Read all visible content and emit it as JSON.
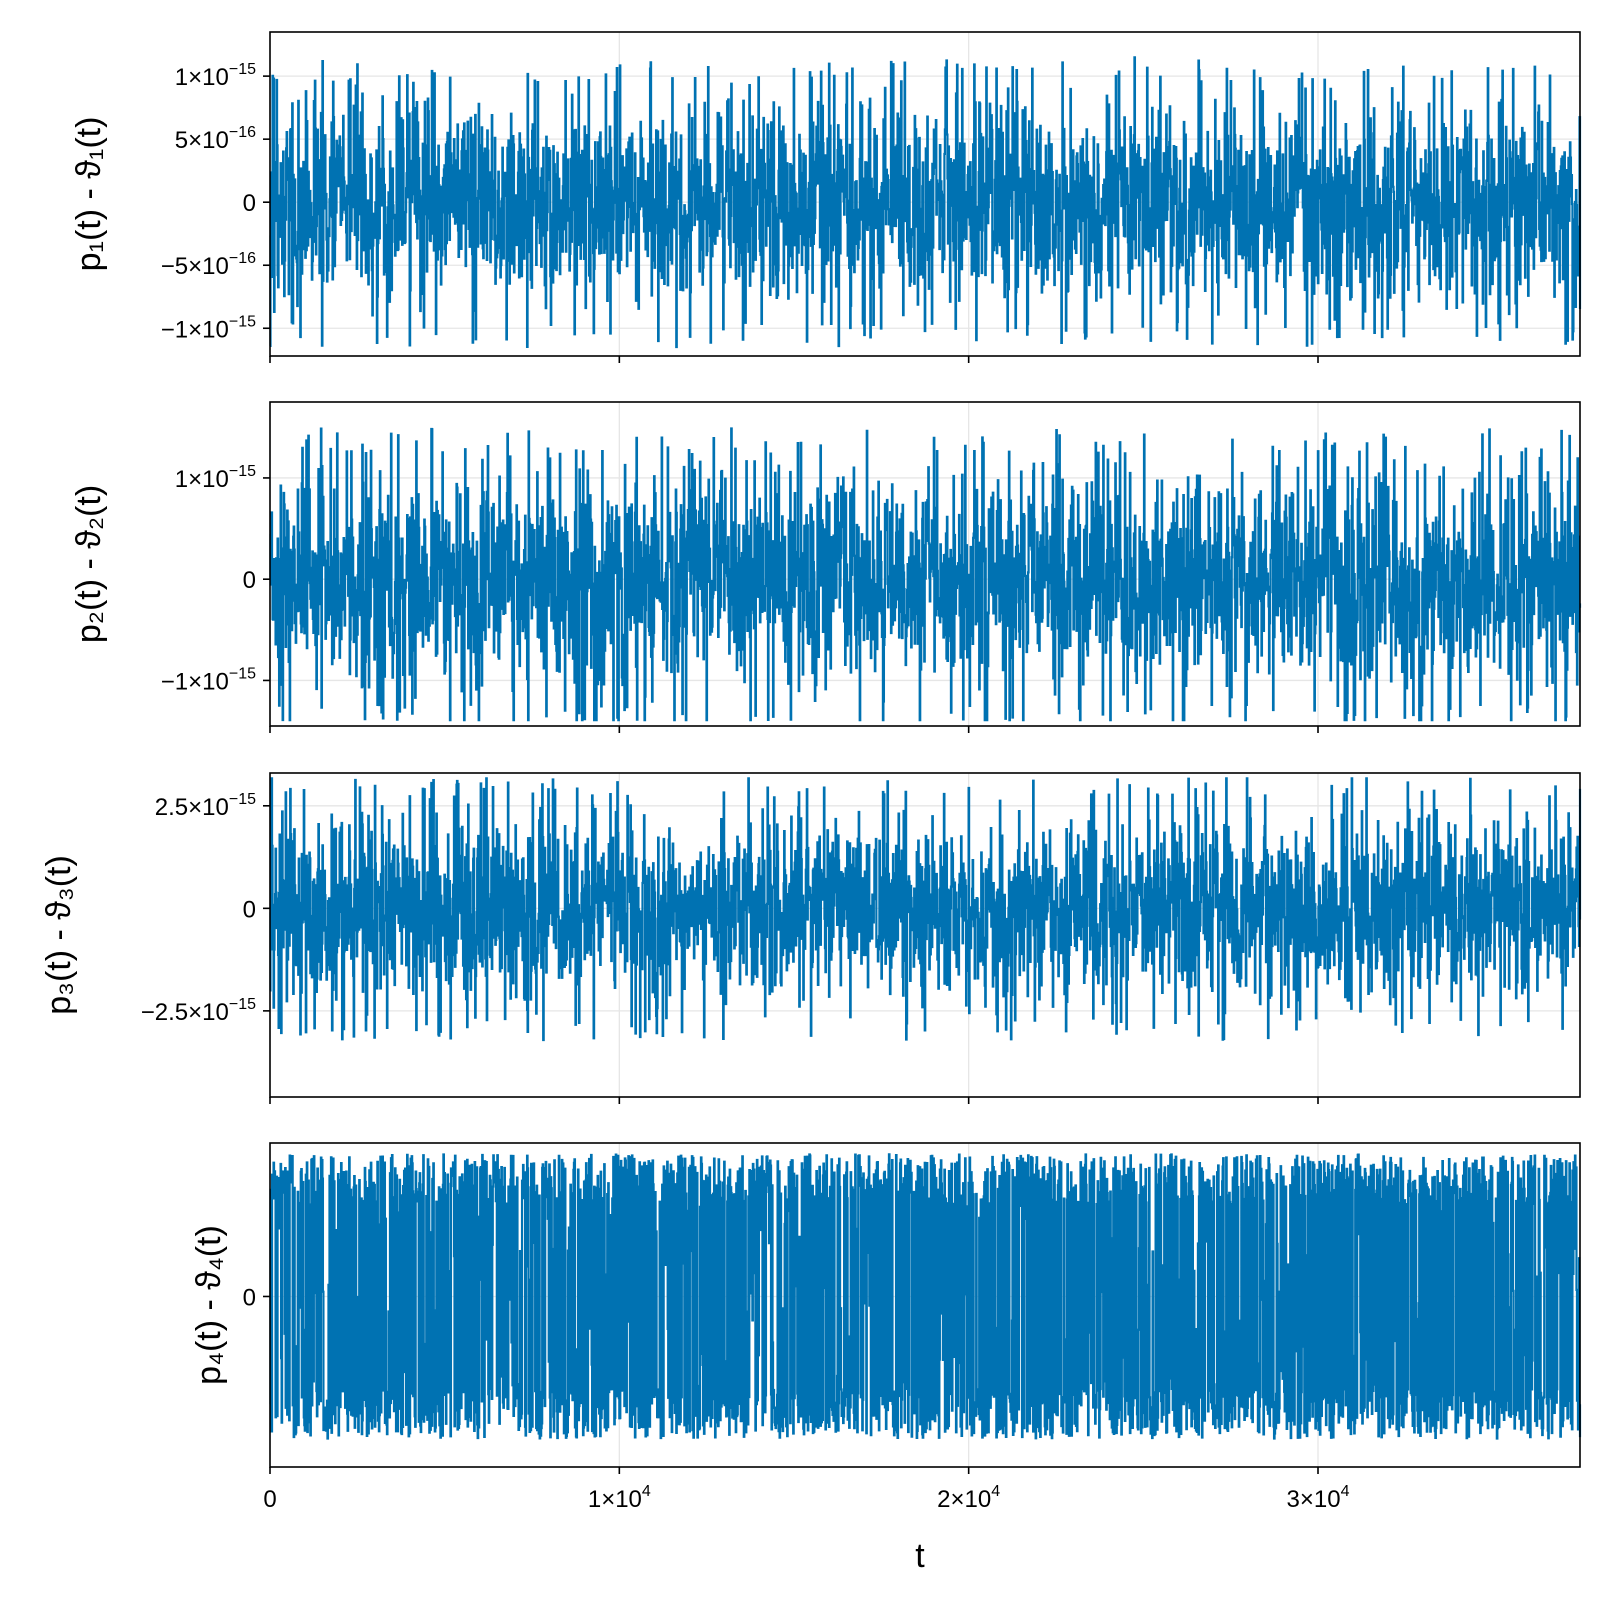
{
  "chart_data": [
    {
      "type": "line",
      "ylabel": "p₁(t) - ϑ₁(t)",
      "xlim": [
        0,
        37500
      ],
      "ylim": [
        -1.22e-15,
        1.35e-15
      ],
      "grid": true,
      "color": "#0072b2",
      "amplitude": 1e-15,
      "yticks": [
        {
          "value": 1e-15,
          "mant": "1×10",
          "exp": "−15"
        },
        {
          "value": 5e-16,
          "mant": "5×10",
          "exp": "−16"
        },
        {
          "value": 0,
          "mant": "0",
          "exp": ""
        },
        {
          "value": -5e-16,
          "mant": "−5×10",
          "exp": "−16"
        },
        {
          "value": -1e-15,
          "mant": "−1×10",
          "exp": "−15"
        }
      ]
    },
    {
      "type": "line",
      "ylabel": "p₂(t) - ϑ₂(t)",
      "xlim": [
        0,
        37500
      ],
      "ylim": [
        -1.45e-15,
        1.75e-15
      ],
      "grid": true,
      "color": "#0072b2",
      "amplitude": 1.3e-15,
      "yticks": [
        {
          "value": 1e-15,
          "mant": "1×10",
          "exp": "−15"
        },
        {
          "value": 0,
          "mant": "0",
          "exp": ""
        },
        {
          "value": -1e-15,
          "mant": "−1×10",
          "exp": "−15"
        }
      ]
    },
    {
      "type": "line",
      "ylabel": "p₃(t) - ϑ₃(t)",
      "xlim": [
        0,
        37500
      ],
      "ylim": [
        -4.6e-15,
        3.3e-15
      ],
      "grid": true,
      "color": "#0072b2",
      "amplitude": 2.8e-15,
      "yticks": [
        {
          "value": 2.5e-15,
          "mant": "2.5×10",
          "exp": "−15"
        },
        {
          "value": 0,
          "mant": "0",
          "exp": ""
        },
        {
          "value": -2.5e-15,
          "mant": "−2.5×10",
          "exp": "−15"
        }
      ]
    },
    {
      "type": "line",
      "ylabel": "p₄(t) - ϑ₄(t)",
      "xlabel": "t",
      "xlim": [
        0,
        37500
      ],
      "ylim": [
        -1.2,
        1.08
      ],
      "grid": true,
      "color": "#0072b2",
      "amplitude": 1.0,
      "yticks": [
        {
          "value": 0,
          "mant": "0",
          "exp": ""
        }
      ]
    }
  ],
  "xticks": [
    {
      "value": 0,
      "mant": "0",
      "exp": ""
    },
    {
      "value": 10000,
      "mant": "1×10",
      "exp": "4"
    },
    {
      "value": 20000,
      "mant": "2×10",
      "exp": "4"
    },
    {
      "value": 30000,
      "mant": "3×10",
      "exp": "4"
    }
  ]
}
